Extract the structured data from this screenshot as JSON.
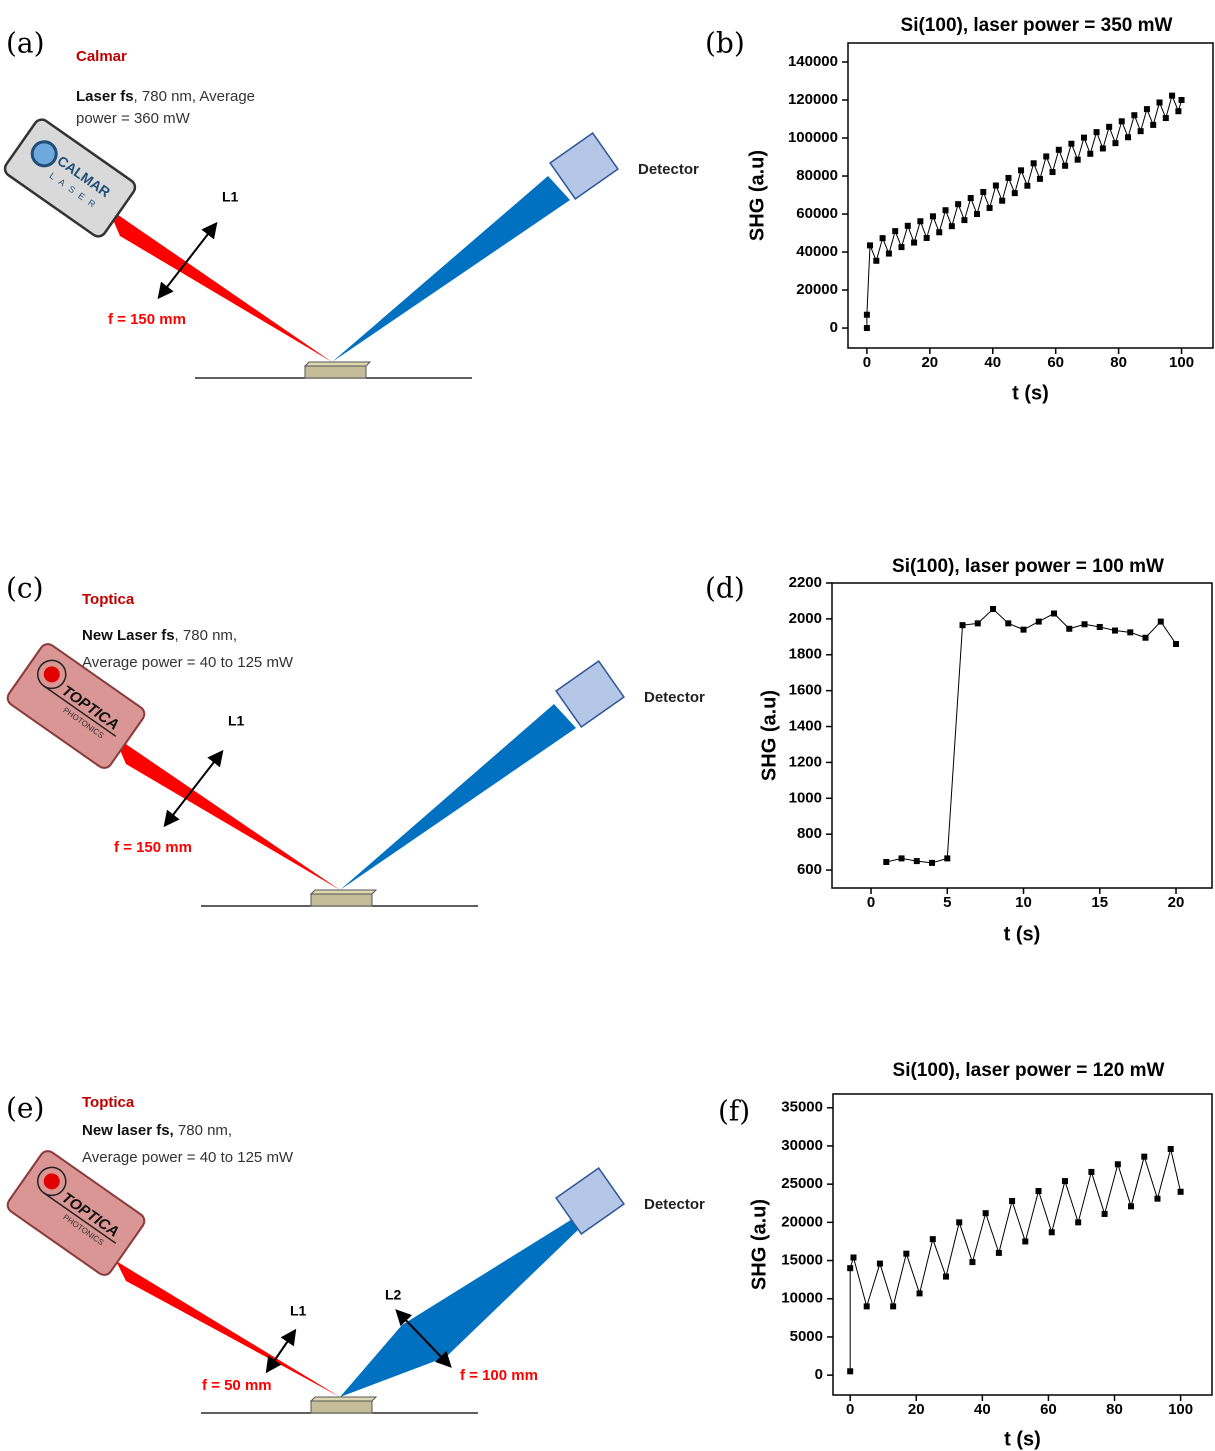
{
  "diagrams": [
    {
      "panel": "(a)",
      "brand": "Calmar",
      "description": {
        "bold": "Laser  fs",
        "lines": [
          ",  780  nm,  Average",
          "power = 360 mW"
        ]
      },
      "logo": {
        "name": "CALMAR",
        "sub": "LASER"
      },
      "lens_labels": [
        "L1"
      ],
      "focal_labels": [
        "f = 150 mm"
      ],
      "detector": "Detector"
    },
    {
      "panel": "(c)",
      "brand": "Toptica",
      "description": {
        "bold": "New Laser fs",
        "lines": [
          ", 780 nm,",
          "Average power = 40 to 125 mW"
        ]
      },
      "logo": {
        "name": "TOPTICA",
        "sub": "PHOTONICS"
      },
      "lens_labels": [
        "L1"
      ],
      "focal_labels": [
        "f = 150 mm"
      ],
      "detector": "Detector"
    },
    {
      "panel": "(e)",
      "brand": "Toptica",
      "description": {
        "bold": "New laser fs,",
        "lines": [
          " 780 nm,",
          "Average power = 40 to 125 mW"
        ]
      },
      "logo": {
        "name": "TOPTICA",
        "sub": "PHOTONICS"
      },
      "lens_labels": [
        "L1",
        "L2"
      ],
      "focal_labels": [
        "f = 50 mm",
        "f = 100 mm"
      ],
      "detector": "Detector"
    }
  ],
  "chart_data": [
    {
      "type": "scatter",
      "panel": "(b)",
      "title": "Si(100), laser power = 350 mW",
      "x_label": "t (s)",
      "y_label": "SHG (a.u)",
      "color": "#000000",
      "x": [
        0,
        0,
        1,
        3,
        5,
        7,
        9,
        11,
        13,
        15,
        17,
        19,
        21,
        23,
        25,
        27,
        29,
        31,
        33,
        35,
        37,
        39,
        41,
        43,
        45,
        47,
        49,
        51,
        53,
        55,
        57,
        59,
        61,
        63,
        65,
        67,
        69,
        71,
        73,
        75,
        77,
        79,
        81,
        83,
        85,
        87,
        89,
        91,
        93,
        95,
        97,
        99,
        100
      ],
      "values": [
        0,
        7000,
        43500,
        35400,
        47300,
        39200,
        51000,
        42600,
        53800,
        45000,
        56200,
        47400,
        58800,
        50400,
        62000,
        53600,
        65200,
        56800,
        68400,
        60000,
        71600,
        63200,
        75000,
        67000,
        79000,
        71000,
        83000,
        74900,
        86700,
        78500,
        90300,
        82100,
        93800,
        85400,
        97000,
        88600,
        100200,
        91700,
        103100,
        94500,
        105900,
        97300,
        108800,
        100400,
        112000,
        103600,
        115200,
        106900,
        118700,
        110500,
        122300,
        114100,
        120000
      ],
      "xlim": [
        -6,
        110
      ],
      "xticks": [
        0,
        20,
        40,
        60,
        80,
        100
      ],
      "ylim": [
        -10500,
        150000
      ],
      "yticks": [
        0,
        20000,
        40000,
        60000,
        80000,
        100000,
        120000,
        140000
      ]
    },
    {
      "type": "scatter",
      "panel": "(d)",
      "title": "Si(100), laser power = 100 mW",
      "x_label": "t (s)",
      "y_label": "SHG (a.u)",
      "color": "#000000",
      "x": [
        1,
        2,
        3,
        4,
        5,
        6,
        7,
        8,
        9,
        10,
        11,
        12,
        13,
        14,
        15,
        16,
        17,
        18,
        19,
        20
      ],
      "values": [
        645,
        665,
        650,
        640,
        665,
        1965,
        1975,
        2055,
        1975,
        1940,
        1985,
        2030,
        1945,
        1970,
        1955,
        1935,
        1925,
        1895,
        1985,
        1860
      ],
      "xlim": [
        -2.56,
        22.36
      ],
      "xticks": [
        0,
        5,
        10,
        15,
        20
      ],
      "ylim": [
        500,
        2200
      ],
      "yticks": [
        600,
        800,
        1000,
        1200,
        1400,
        1600,
        1800,
        2000,
        2200
      ]
    },
    {
      "type": "scatter",
      "panel": "(f)",
      "title": "Si(100), laser power = 120 mW",
      "x_label": "t (s)",
      "y_label": "SHG (a.u)",
      "color": "#000000",
      "x": [
        0,
        0,
        1,
        5,
        9,
        13,
        17,
        21,
        25,
        29,
        33,
        37,
        41,
        45,
        49,
        53,
        57,
        61,
        65,
        69,
        73,
        77,
        81,
        85,
        89,
        93,
        97,
        100
      ],
      "values": [
        500,
        14000,
        15400,
        9000,
        14600,
        9000,
        15900,
        10700,
        17800,
        12900,
        20000,
        14800,
        21200,
        16000,
        22800,
        17500,
        24100,
        18700,
        25400,
        20000,
        26600,
        21100,
        27600,
        22100,
        28600,
        23100,
        29600,
        24000
      ],
      "xlim": [
        -5.2,
        109.5
      ],
      "xticks": [
        0,
        20,
        40,
        60,
        80,
        100
      ],
      "ylim": [
        -2600,
        36800
      ],
      "yticks": [
        0,
        5000,
        10000,
        15000,
        20000,
        25000,
        30000,
        35000
      ]
    }
  ]
}
